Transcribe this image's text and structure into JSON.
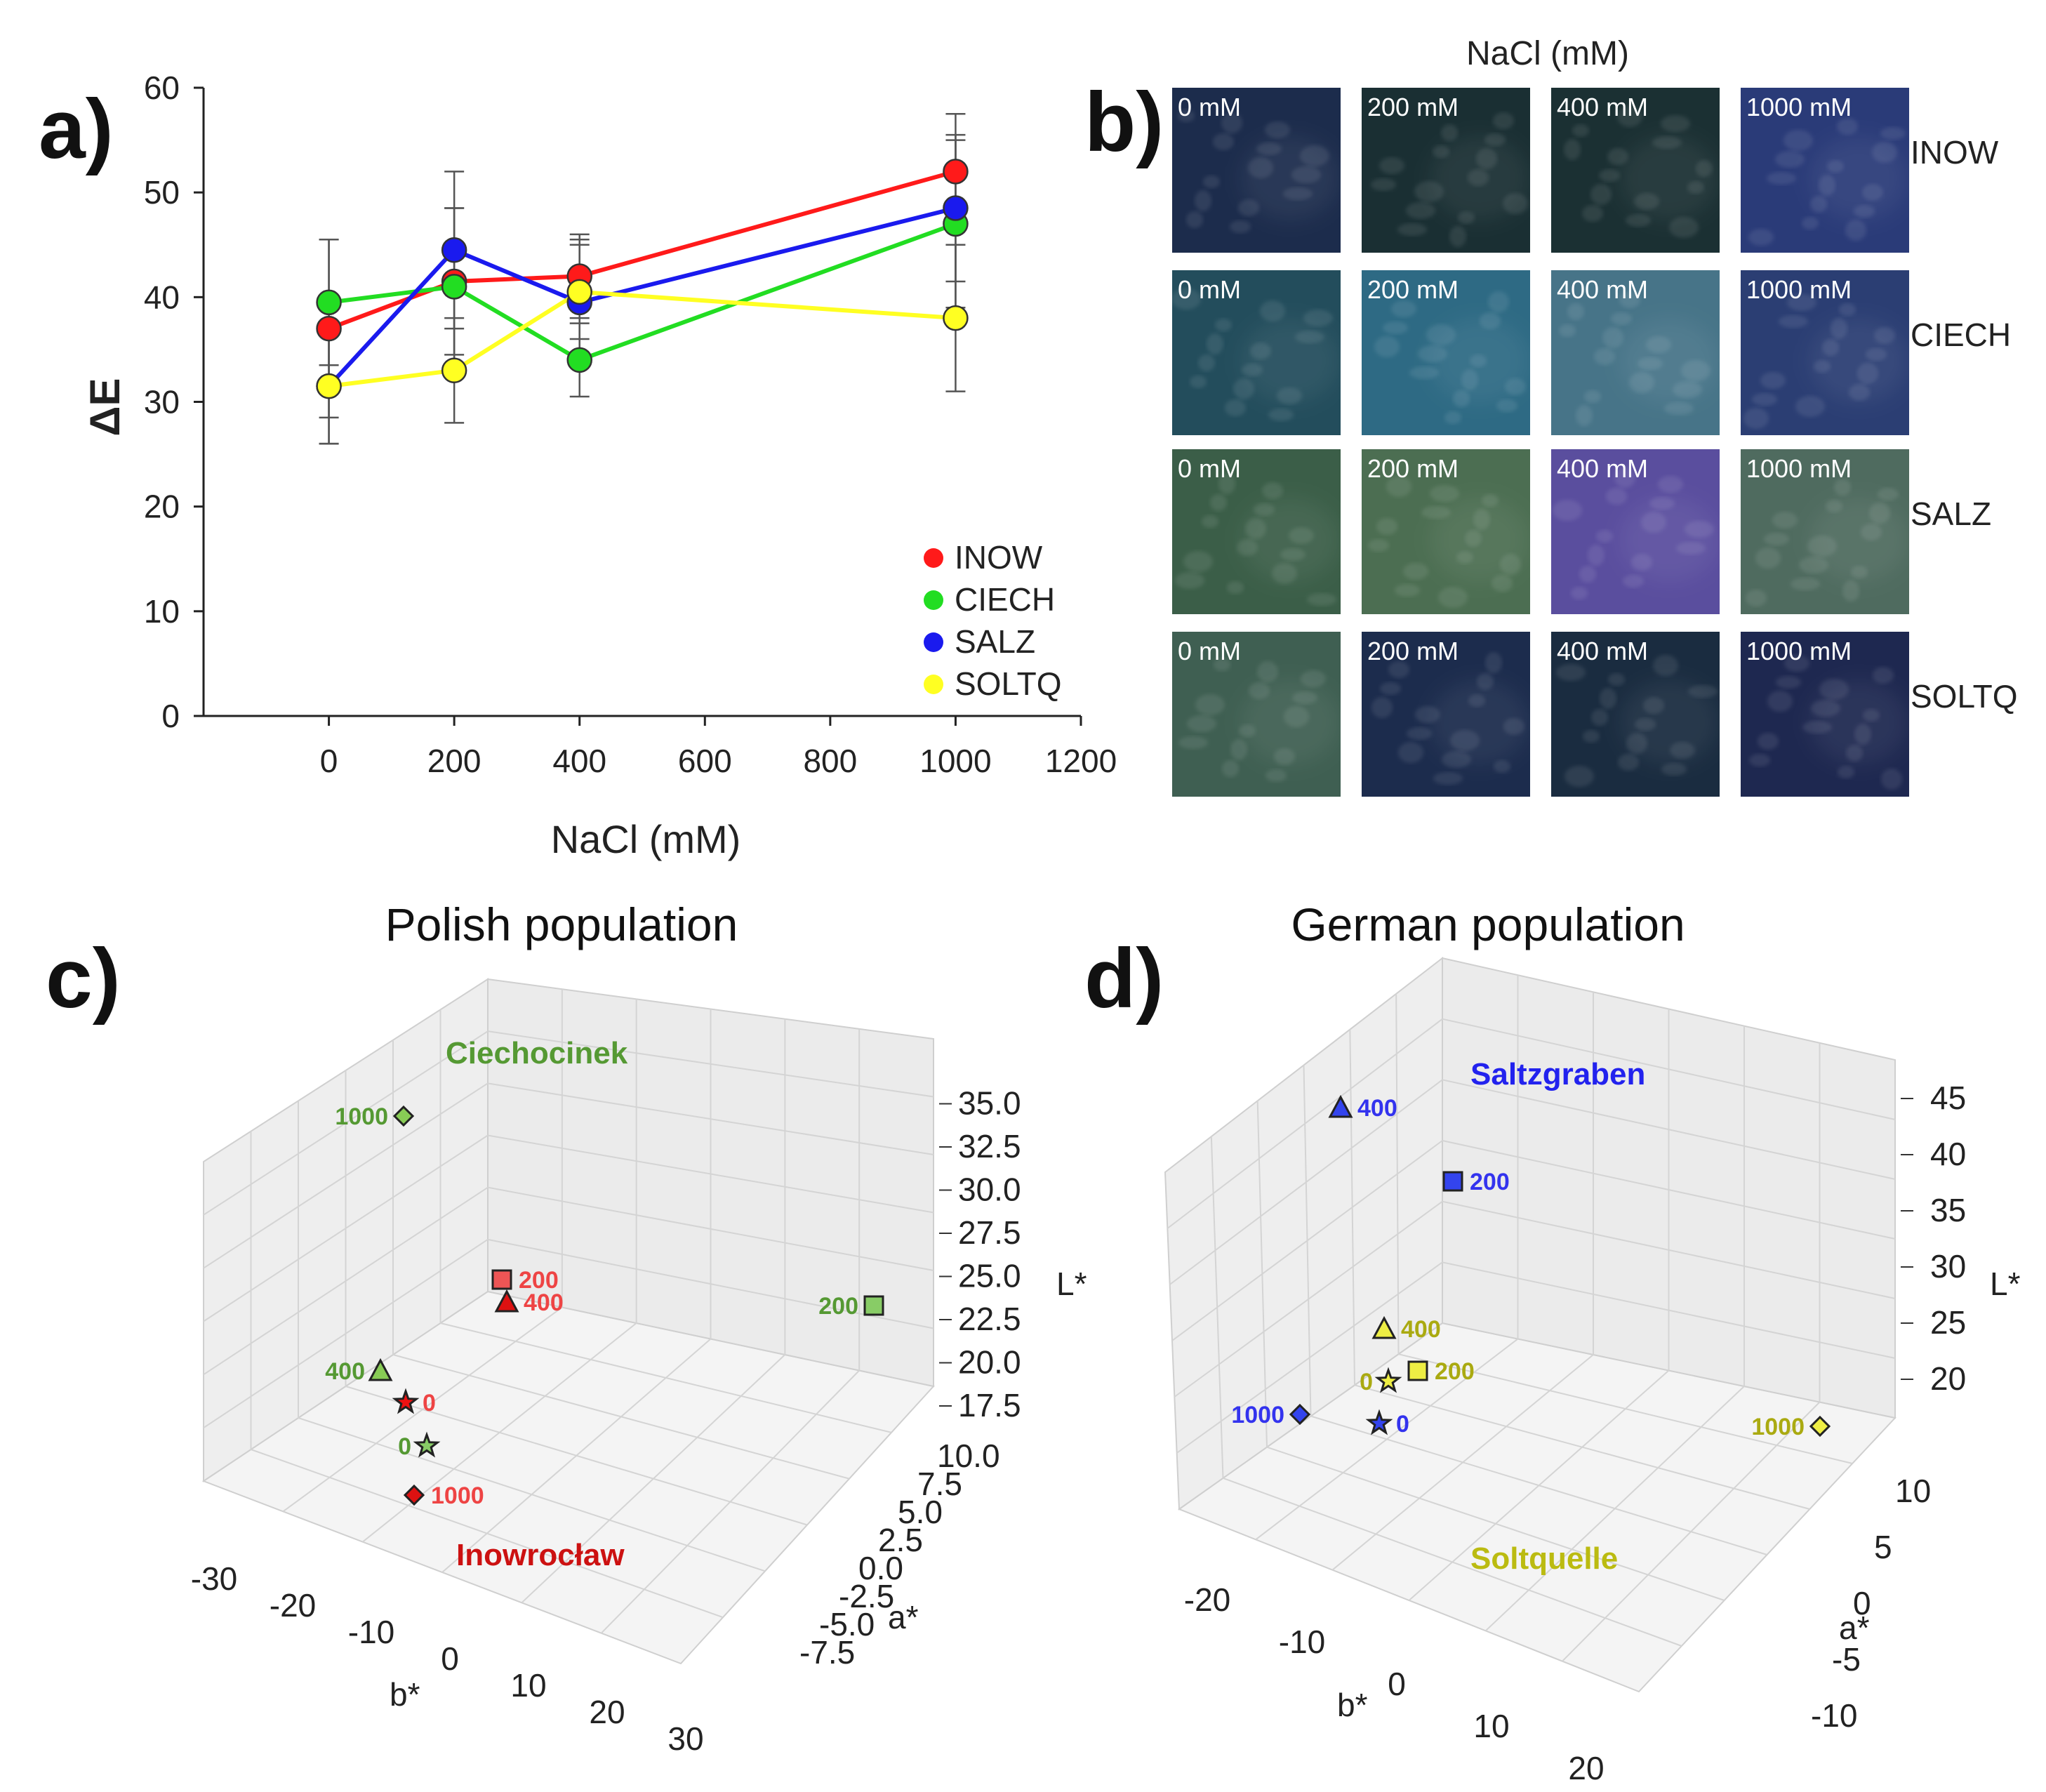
{
  "chart_data": [
    {
      "panel": "a)",
      "type": "line",
      "xlabel": "NaCl (mM)",
      "ylabel": "ΔE",
      "xlim": [
        -200,
        1200
      ],
      "ylim": [
        0,
        60
      ],
      "xticks": [
        0,
        200,
        400,
        600,
        800,
        1000,
        1200
      ],
      "yticks": [
        0,
        10,
        20,
        30,
        40,
        50,
        60
      ],
      "x": [
        0,
        200,
        400,
        1000
      ],
      "legend_position": "bottom-right",
      "series": [
        {
          "name": "INOW",
          "color": "#ff1a1a",
          "values": [
            37,
            41.5,
            42,
            52
          ],
          "err": [
            8.5,
            7,
            4,
            5.5
          ]
        },
        {
          "name": "CIECH",
          "color": "#22dd22",
          "values": [
            39.5,
            41,
            34,
            47
          ],
          "err": [
            6,
            7.5,
            3.5,
            8
          ]
        },
        {
          "name": "SALZ",
          "color": "#1a1aee",
          "values": [
            31.5,
            44.5,
            39.5,
            48.5
          ],
          "err": [
            5.5,
            7.5,
            6,
            7
          ]
        },
        {
          "name": "SOLTQ",
          "color": "#ffff22",
          "values": [
            31.5,
            33,
            40.5,
            38
          ],
          "err": [
            5.5,
            5,
            4.5,
            7
          ]
        }
      ]
    },
    {
      "panel": "b)",
      "type": "image-grid",
      "title": "NaCl (mM)",
      "columns": [
        "0 mM",
        "200 mM",
        "400 mM",
        "1000 mM"
      ],
      "rows": [
        {
          "name": "INOW",
          "colors": [
            "#1c2c4c",
            "#1a2f33",
            "#1b3033",
            "#2a3b78"
          ]
        },
        {
          "name": "CIECH",
          "colors": [
            "#234d5c",
            "#2e6a84",
            "#477488",
            "#2b3e73"
          ]
        },
        {
          "name": "SALZ",
          "colors": [
            "#3b5e48",
            "#4c6e52",
            "#5a4e9e",
            "#4f6b5f"
          ]
        },
        {
          "name": "SOLTQ",
          "colors": [
            "#3f5f52",
            "#1c2c4d",
            "#1a2c40",
            "#1e2850"
          ]
        }
      ]
    },
    {
      "panel": "c)",
      "type": "scatter3d",
      "title": "Polish population",
      "xlabel": "b*",
      "ylabel": "a*",
      "zlabel": "L*",
      "b_ticks": [
        -30,
        -20,
        -10,
        0,
        10,
        20,
        30
      ],
      "a_ticks": [
        -7.5,
        -5.0,
        -2.5,
        0.0,
        2.5,
        5.0,
        7.5,
        10.0
      ],
      "L_ticks": [
        17.5,
        20.0,
        22.5,
        25.0,
        27.5,
        30.0,
        32.5,
        35.0
      ],
      "group_labels": [
        {
          "text": "Ciechocinek",
          "color": "#559933"
        },
        {
          "text": "Inowrocław",
          "color": "#cc1111"
        }
      ],
      "points": [
        {
          "label": "1000",
          "marker": "diamond",
          "fill": "#88cc55",
          "text_color": "#559933"
        },
        {
          "label": "200",
          "marker": "square",
          "fill": "#ee5555",
          "text_color": "#ee4444"
        },
        {
          "label": "400",
          "marker": "triangle",
          "fill": "#dd1111",
          "text_color": "#ee4444"
        },
        {
          "label": "200",
          "marker": "square",
          "fill": "#88cc66",
          "text_color": "#559933"
        },
        {
          "label": "400",
          "marker": "triangle",
          "fill": "#88cc55",
          "text_color": "#559933"
        },
        {
          "label": "0",
          "marker": "star",
          "fill": "#ee1111",
          "text_color": "#ee4444"
        },
        {
          "label": "0",
          "marker": "star",
          "fill": "#88cc66",
          "text_color": "#559933"
        },
        {
          "label": "1000",
          "marker": "diamond",
          "fill": "#dd1111",
          "text_color": "#ee4444"
        }
      ]
    },
    {
      "panel": "d)",
      "type": "scatter3d",
      "title": "German population",
      "xlabel": "b*",
      "ylabel": "a*",
      "zlabel": "L*",
      "b_ticks": [
        -20,
        -10,
        0,
        10,
        20
      ],
      "a_ticks": [
        -10,
        -5,
        0,
        5,
        10
      ],
      "L_ticks": [
        20,
        25,
        30,
        35,
        40,
        45
      ],
      "group_labels": [
        {
          "text": "Saltzgraben",
          "color": "#2222ee"
        },
        {
          "text": "Soltquelle",
          "color": "#bbbb11"
        }
      ],
      "points": [
        {
          "label": "400",
          "marker": "triangle",
          "fill": "#3344ee",
          "text_color": "#3333ee"
        },
        {
          "label": "200",
          "marker": "square",
          "fill": "#3344ee",
          "text_color": "#3333ee"
        },
        {
          "label": "400",
          "marker": "triangle",
          "fill": "#eeee44",
          "text_color": "#aaaa11"
        },
        {
          "label": "0",
          "marker": "star",
          "fill": "#eeee44",
          "text_color": "#aaaa11"
        },
        {
          "label": "200",
          "marker": "square",
          "fill": "#eeee44",
          "text_color": "#aaaa11"
        },
        {
          "label": "1000",
          "marker": "diamond",
          "fill": "#3344ee",
          "text_color": "#3333ee"
        },
        {
          "label": "0",
          "marker": "star",
          "fill": "#3344ee",
          "text_color": "#3333ee"
        },
        {
          "label": "1000",
          "marker": "diamond",
          "fill": "#eeee44",
          "text_color": "#aaaa11"
        }
      ]
    }
  ]
}
